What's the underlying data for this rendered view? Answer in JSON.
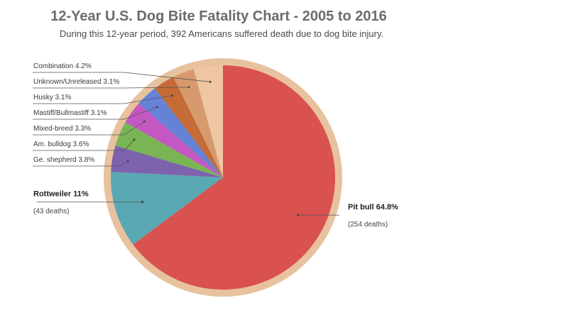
{
  "colors": {
    "rim": "#e8c29e",
    "title": "#6b6b6b"
  },
  "chart_data": {
    "type": "pie",
    "title": "12-Year U.S. Dog Bite Fatality Chart - 2005 to 2016",
    "subtitle": "During this 12-year period, 392 Americans suffered death due to dog bite injury.",
    "start": "top",
    "direction": "clockwise",
    "slices": [
      {
        "name": "Pit bull",
        "value": 64.8,
        "label": "Pit bull 64.8%",
        "sublabel": "(254 deaths)",
        "color": "#d9524f",
        "major": true
      },
      {
        "name": "Rottweiler",
        "value": 11,
        "label": "Rottweiler 11%",
        "sublabel": "(43 deaths)",
        "color": "#5aa8b4",
        "major": true
      },
      {
        "name": "Ge. shepherd",
        "value": 3.8,
        "label": "Ge. shepherd 3.8%",
        "color": "#7d63ad",
        "major": false
      },
      {
        "name": "Am. bulldog",
        "value": 3.6,
        "label": "Am. bulldog 3.6%",
        "color": "#7ab555",
        "major": false
      },
      {
        "name": "Mixed-breed",
        "value": 3.3,
        "label": "Mixed-breed 3.3%",
        "color": "#c458c2",
        "major": false
      },
      {
        "name": "Mastiff/Bullmastiff",
        "value": 3.1,
        "label": "Mastiff/Bullmastiff 3.1%",
        "color": "#6483d6",
        "major": false
      },
      {
        "name": "Husky",
        "value": 3.1,
        "label": "Husky 3.1%",
        "color": "#c46b38",
        "major": false
      },
      {
        "name": "Unknown/Unreleased",
        "value": 3.1,
        "label": "Unknown/Unreleased 3.1%",
        "color": "#d79a6e",
        "major": false
      },
      {
        "name": "Combination",
        "value": 4.2,
        "label": "Combination 4.2%",
        "color": "#efc6a4",
        "major": false
      }
    ]
  }
}
